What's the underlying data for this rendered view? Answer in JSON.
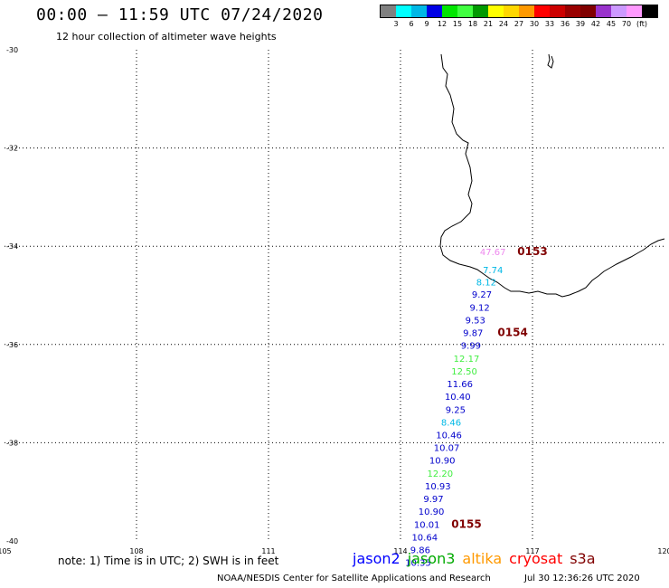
{
  "header": {
    "title": "00:00 – 11:59 UTC 07/24/2020",
    "subtitle": "12 hour collection of altimeter wave heights"
  },
  "colorbar": {
    "colors": [
      "#808080",
      "#00ffff",
      "#00b8e6",
      "#0000e6",
      "#00e600",
      "#40ff40",
      "#009900",
      "#ffff00",
      "#ffd700",
      "#ff9900",
      "#ff0000",
      "#cc0000",
      "#990000",
      "#800000",
      "#9933cc",
      "#cc99ff",
      "#ff99ff",
      "#000000"
    ],
    "labels": [
      "3",
      "6",
      "9",
      "12",
      "15",
      "18",
      "21",
      "24",
      "27",
      "30",
      "33",
      "36",
      "39",
      "42",
      "45",
      "70",
      "(ft)"
    ]
  },
  "chart_data": {
    "type": "scatter",
    "xlim": [
      105,
      120
    ],
    "ylim": [
      -40,
      -30
    ],
    "x_ticks": [
      105,
      108,
      111,
      114,
      117,
      120
    ],
    "y_ticks": [
      -30,
      -32,
      -34,
      -36,
      -38,
      -40
    ],
    "grid": true,
    "points": [
      {
        "lon": 116.1,
        "lat": -34.18,
        "value": "47.67",
        "color": "#ee88ee"
      },
      {
        "lon": 116.1,
        "lat": -34.55,
        "value": "7.74",
        "color": "#00b8e6"
      },
      {
        "lon": 115.95,
        "lat": -34.8,
        "value": "8.12",
        "color": "#00b8e6"
      },
      {
        "lon": 115.85,
        "lat": -35.05,
        "value": "9.27",
        "color": "#0000cc"
      },
      {
        "lon": 115.8,
        "lat": -35.31,
        "value": "9.12",
        "color": "#0000cc"
      },
      {
        "lon": 115.7,
        "lat": -35.57,
        "value": "9.53",
        "color": "#0000cc"
      },
      {
        "lon": 115.65,
        "lat": -35.83,
        "value": "9.87",
        "color": "#0000cc"
      },
      {
        "lon": 115.6,
        "lat": -36.09,
        "value": "9.99",
        "color": "#0000cc"
      },
      {
        "lon": 115.5,
        "lat": -36.35,
        "value": "12.17",
        "color": "#40ee40"
      },
      {
        "lon": 115.45,
        "lat": -36.61,
        "value": "12.50",
        "color": "#40ee40"
      },
      {
        "lon": 115.35,
        "lat": -36.87,
        "value": "11.66",
        "color": "#0000cc"
      },
      {
        "lon": 115.3,
        "lat": -37.13,
        "value": "10.40",
        "color": "#0000cc"
      },
      {
        "lon": 115.25,
        "lat": -37.39,
        "value": "9.25",
        "color": "#0000cc"
      },
      {
        "lon": 115.15,
        "lat": -37.65,
        "value": "8.46",
        "color": "#00b8e6"
      },
      {
        "lon": 115.1,
        "lat": -37.91,
        "value": "10.46",
        "color": "#0000cc"
      },
      {
        "lon": 115.05,
        "lat": -38.17,
        "value": "10.07",
        "color": "#0000cc"
      },
      {
        "lon": 114.95,
        "lat": -38.43,
        "value": "10.90",
        "color": "#0000cc"
      },
      {
        "lon": 114.9,
        "lat": -38.69,
        "value": "12.20",
        "color": "#40ee40"
      },
      {
        "lon": 114.85,
        "lat": -38.95,
        "value": "10.93",
        "color": "#0000cc"
      },
      {
        "lon": 114.75,
        "lat": -39.21,
        "value": "9.97",
        "color": "#0000cc"
      },
      {
        "lon": 114.7,
        "lat": -39.47,
        "value": "10.90",
        "color": "#0000cc"
      },
      {
        "lon": 114.6,
        "lat": -39.73,
        "value": "10.01",
        "color": "#0000cc"
      },
      {
        "lon": 114.55,
        "lat": -39.99,
        "value": "10.64",
        "color": "#0000cc"
      },
      {
        "lon": 114.45,
        "lat": -40.25,
        "value": "9.86",
        "color": "#0000cc"
      },
      {
        "lon": 114.4,
        "lat": -40.51,
        "value": "10.35",
        "color": "#0000cc"
      }
    ],
    "pass_labels": [
      {
        "lon": 117.0,
        "lat": -34.18,
        "text": "0153",
        "color": "#800000"
      },
      {
        "lon": 116.55,
        "lat": -35.83,
        "text": "0154",
        "color": "#800000"
      },
      {
        "lon": 115.5,
        "lat": -39.73,
        "text": "0155",
        "color": "#800000"
      }
    ]
  },
  "footer": {
    "note": "note:  1) Time is in UTC; 2) SWH is in feet",
    "credit": "NOAA/NESDIS Center for Satellite Applications and Research",
    "timestamp": "Jul 30 12:36:26 UTC 2020"
  },
  "satellites": [
    {
      "name": "jason2",
      "color": "#0000ff"
    },
    {
      "name": "jason3",
      "color": "#00aa00"
    },
    {
      "name": "altika",
      "color": "#ff9900"
    },
    {
      "name": "cryosat",
      "color": "#ff0000"
    },
    {
      "name": "s3a",
      "color": "#800000"
    }
  ]
}
